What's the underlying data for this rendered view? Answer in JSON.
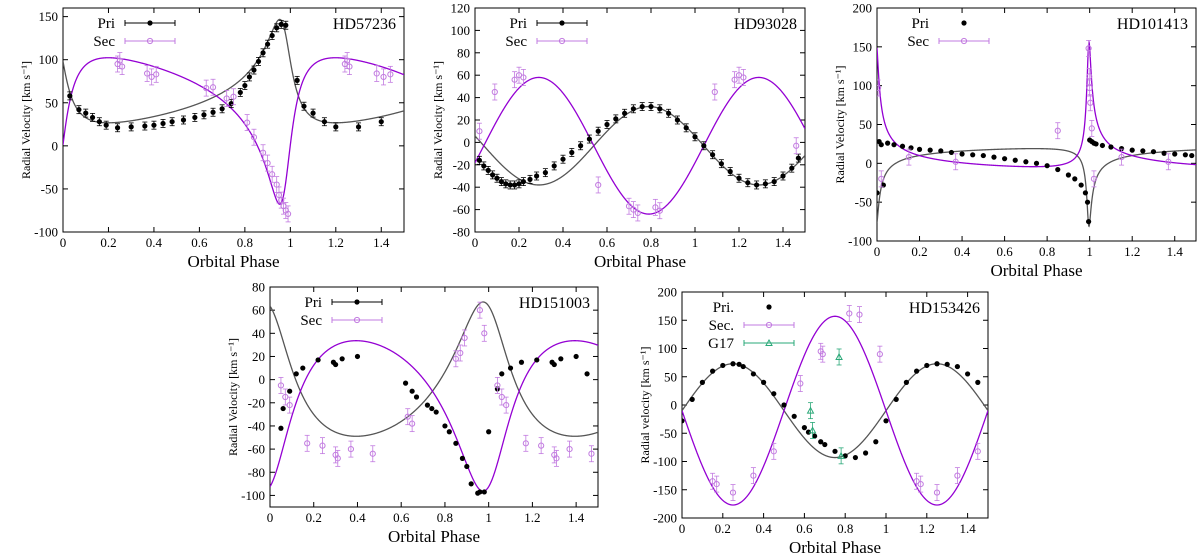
{
  "colors": {
    "pri": "#000000",
    "sec": "#9400d3",
    "sec_light": "#c27be0",
    "g17": "#2aa878",
    "axis": "#000000"
  },
  "chart_data": [
    {
      "type": "scatter",
      "title": "HD57236",
      "xlabel": "Orbital Phase",
      "ylabel": "Radial Velocity [km s⁻¹]",
      "xlim": [
        0,
        1.5
      ],
      "ylim": [
        -100,
        160
      ],
      "xticks": [
        0,
        0.2,
        0.4,
        0.6,
        0.8,
        1,
        1.2,
        1.4
      ],
      "xticklabels": [
        "0",
        "0.2",
        "0.4",
        "0.6",
        "0.8",
        "1",
        "1.2",
        "1.4"
      ],
      "yticks": [
        -100,
        -50,
        0,
        50,
        100,
        150
      ],
      "legend": [
        "Pri",
        "Sec"
      ],
      "orbit": {
        "gamma": 58,
        "K1": 60,
        "K2": 85,
        "e": 0.6,
        "omega_deg": 37,
        "T0": 0.975
      },
      "series": [
        {
          "name": "Pri",
          "style": "pri",
          "marker": "dot",
          "errorbars": true,
          "x": [
            0.03,
            0.07,
            0.1,
            0.13,
            0.16,
            0.19,
            0.24,
            0.3,
            0.36,
            0.4,
            0.44,
            0.48,
            0.53,
            0.58,
            0.62,
            0.66,
            0.7,
            0.74,
            0.78,
            0.8,
            0.82,
            0.84,
            0.86,
            0.88,
            0.9,
            0.92,
            0.94,
            0.96,
            0.98,
            1.03,
            1.06,
            1.1,
            1.15,
            1.2,
            1.3,
            1.4
          ],
          "y": [
            58,
            42,
            38,
            33,
            28,
            24,
            21,
            22,
            23,
            24,
            26,
            28,
            30,
            33,
            36,
            39,
            43,
            49,
            62,
            70,
            80,
            88,
            98,
            108,
            118,
            128,
            137,
            141,
            140,
            76,
            46,
            38,
            28,
            22,
            22,
            28
          ]
        },
        {
          "name": "Sec",
          "style": "sec",
          "marker": "circle",
          "errorbars": true,
          "x": [
            0.24,
            0.25,
            0.26,
            0.37,
            0.39,
            0.41,
            0.63,
            0.66,
            0.72,
            0.75,
            0.81,
            0.84,
            0.88,
            0.9,
            0.92,
            0.94,
            0.95,
            0.96,
            0.97,
            0.98,
            0.99,
            1.24,
            1.25,
            1.26,
            1.38,
            1.41,
            1.44
          ],
          "y": [
            95,
            99,
            92,
            84,
            80,
            83,
            67,
            68,
            55,
            57,
            27,
            10,
            -8,
            -20,
            -33,
            -45,
            -57,
            -63,
            -70,
            -75,
            -79,
            95,
            99,
            92,
            84,
            80,
            83
          ]
        }
      ]
    },
    {
      "type": "scatter",
      "title": "HD93028",
      "xlabel": "Orbital Phase",
      "ylabel": "Radial Velocity [km s⁻¹]",
      "xlim": [
        0,
        1.5
      ],
      "ylim": [
        -80,
        120
      ],
      "xticks": [
        0,
        0.2,
        0.4,
        0.6,
        0.8,
        1,
        1.2,
        1.4
      ],
      "xticklabels": [
        "0",
        "0.2",
        "0.4",
        "0.6",
        "0.8",
        "1",
        "1.2",
        "1.4"
      ],
      "yticks": [
        -80,
        -60,
        -40,
        -20,
        0,
        20,
        40,
        60,
        80,
        100,
        120
      ],
      "legend": [
        "Pri",
        "Sec"
      ],
      "orbit": {
        "gamma": -3,
        "K1": 35,
        "K2": 61,
        "e": 0,
        "omega_deg": 0,
        "phi_max1": 0.79
      },
      "series": [
        {
          "name": "Pri",
          "style": "pri",
          "marker": "dot",
          "errorbars": true,
          "x": [
            0.02,
            0.04,
            0.06,
            0.08,
            0.1,
            0.12,
            0.14,
            0.16,
            0.18,
            0.2,
            0.22,
            0.25,
            0.28,
            0.32,
            0.36,
            0.4,
            0.44,
            0.48,
            0.52,
            0.56,
            0.6,
            0.64,
            0.68,
            0.72,
            0.76,
            0.8,
            0.84,
            0.88,
            0.92,
            0.96,
            1.0,
            1.04,
            1.08,
            1.12,
            1.16,
            1.2,
            1.24,
            1.28,
            1.32,
            1.36,
            1.4,
            1.44,
            1.47
          ],
          "y": [
            -16,
            -21,
            -25,
            -29,
            -32,
            -35,
            -37,
            -38,
            -38,
            -37,
            -35,
            -33,
            -30,
            -27,
            -21,
            -15,
            -9,
            -3,
            3,
            10,
            16,
            21,
            26,
            30,
            32,
            32,
            30,
            26,
            20,
            13,
            5,
            -3,
            -11,
            -19,
            -26,
            -32,
            -36,
            -38,
            -37,
            -35,
            -30,
            -23,
            -14
          ]
        },
        {
          "name": "Sec",
          "style": "sec",
          "marker": "circle",
          "errorbars": true,
          "x": [
            0.02,
            0.09,
            0.18,
            0.2,
            0.22,
            0.56,
            0.7,
            0.72,
            0.74,
            0.82,
            0.84,
            1.09,
            1.18,
            1.2,
            1.22,
            1.46
          ],
          "y": [
            10,
            45,
            56,
            60,
            58,
            -38,
            -57,
            -60,
            -63,
            -58,
            -61,
            45,
            56,
            60,
            58,
            -3
          ]
        }
      ]
    },
    {
      "type": "scatter",
      "title": "HD101413",
      "xlabel": "Orbital Phase",
      "ylabel": "Radial Velocity [km s⁻¹]",
      "xlim": [
        0,
        1.5
      ],
      "ylim": [
        -100,
        200
      ],
      "xticks": [
        0,
        0.2,
        0.4,
        0.6,
        0.8,
        1,
        1.2,
        1.4
      ],
      "xticklabels": [
        "0",
        "0.2",
        "0.4",
        "0.6",
        "0.8",
        "1",
        "1.2",
        "1.4"
      ],
      "yticks": [
        -100,
        -50,
        0,
        50,
        100,
        150,
        200
      ],
      "legend": [
        "Pri",
        "Sec"
      ],
      "orbit": {
        "gamma": 10,
        "K1": 50,
        "K2": 80,
        "e": 0.85,
        "omega_deg": 165,
        "T0": 0.995
      },
      "series": [
        {
          "name": "Pri",
          "style": "pri",
          "marker": "dot",
          "errorbars": false,
          "x": [
            0.0,
            0.01,
            0.02,
            0.03,
            0.05,
            0.08,
            0.12,
            0.16,
            0.2,
            0.25,
            0.3,
            0.35,
            0.4,
            0.45,
            0.5,
            0.55,
            0.6,
            0.65,
            0.7,
            0.75,
            0.8,
            0.85,
            0.9,
            0.93,
            0.96,
            0.98,
            0.99,
            0.995,
            1.0,
            1.01,
            1.02,
            1.03,
            1.06,
            1.1,
            1.15,
            1.2,
            1.25,
            1.3,
            1.35,
            1.4,
            1.45,
            1.48
          ],
          "y": [
            -38,
            28,
            24,
            -28,
            26,
            24,
            22,
            20,
            18,
            17,
            16,
            14,
            12,
            11,
            10,
            8,
            6,
            4,
            2,
            0,
            -3,
            -8,
            -15,
            -20,
            -28,
            -38,
            -50,
            -75,
            30,
            28,
            26,
            25,
            23,
            21,
            19,
            17,
            16,
            15,
            13,
            12,
            11,
            10
          ]
        },
        {
          "name": "Sec",
          "style": "sec",
          "marker": "circle",
          "errorbars": true,
          "x": [
            0.005,
            0.02,
            0.15,
            0.37,
            0.85,
            0.995,
            0.998,
            1.0,
            1.003,
            1.01,
            1.02,
            1.15,
            1.37
          ],
          "y": [
            97,
            -20,
            8,
            2,
            42,
            148,
            112,
            97,
            78,
            45,
            -20,
            8,
            2
          ]
        }
      ]
    },
    {
      "type": "scatter",
      "title": "HD151003",
      "xlabel": "Orbital Phase",
      "ylabel": "Radial Velocity [km s⁻¹]",
      "xlim": [
        0,
        1.5
      ],
      "ylim": [
        -110,
        80
      ],
      "xticks": [
        0,
        0.2,
        0.4,
        0.6,
        0.8,
        1,
        1.2,
        1.4
      ],
      "xticklabels": [
        "0",
        "0.2",
        "0.4",
        "0.6",
        "0.8",
        "1",
        "1.2",
        "1.4"
      ],
      "yticks": [
        -100,
        -80,
        -60,
        -40,
        -20,
        0,
        20,
        40,
        60,
        80
      ],
      "legend": [
        "Pri",
        "Sec"
      ],
      "orbit": {
        "gamma": -10,
        "K1": 58,
        "K2": 65,
        "e": 0.35,
        "omega_deg": 20,
        "T0": 0.0
      },
      "series": [
        {
          "name": "Pri",
          "style": "pri",
          "marker": "dot",
          "errorbars": false,
          "x": [
            0.05,
            0.06,
            0.09,
            0.12,
            0.15,
            0.22,
            0.29,
            0.3,
            0.33,
            0.4,
            0.62,
            0.65,
            0.67,
            0.72,
            0.74,
            0.76,
            0.8,
            0.82,
            0.85,
            0.88,
            0.9,
            0.92,
            0.95,
            0.96,
            0.98,
            1.0,
            1.04,
            1.06,
            1.1,
            1.15,
            1.22,
            1.29,
            1.3,
            1.33,
            1.4,
            1.45
          ],
          "y": [
            -42,
            -25,
            -10,
            5,
            10,
            17,
            15,
            13,
            18,
            20,
            -3,
            -10,
            -15,
            -22,
            -25,
            -28,
            -40,
            -45,
            -55,
            -68,
            -75,
            -90,
            -98,
            -97,
            -97,
            -45,
            -8,
            5,
            10,
            15,
            17,
            15,
            13,
            18,
            20,
            5
          ]
        },
        {
          "name": "Sec",
          "style": "sec",
          "marker": "circle",
          "errorbars": true,
          "x": [
            0.05,
            0.07,
            0.09,
            0.17,
            0.24,
            0.3,
            0.31,
            0.37,
            0.47,
            0.63,
            0.65,
            0.85,
            0.87,
            0.89,
            0.96,
            0.98,
            1.04,
            1.06,
            1.08,
            1.17,
            1.24,
            1.3,
            1.31,
            1.37,
            1.47
          ],
          "y": [
            -5,
            -15,
            -22,
            -55,
            -57,
            -65,
            -68,
            -60,
            -64,
            -32,
            -38,
            18,
            23,
            36,
            60,
            40,
            -5,
            -15,
            -22,
            -55,
            -57,
            -65,
            -68,
            -60,
            -64
          ]
        }
      ]
    },
    {
      "type": "scatter",
      "title": "HD153426",
      "xlabel": "Orbital Phase",
      "ylabel": "Radial velocity [km s⁻¹]",
      "xlim": [
        0,
        1.5
      ],
      "ylim": [
        -200,
        200
      ],
      "xticks": [
        0,
        0.2,
        0.4,
        0.6,
        0.8,
        1,
        1.2,
        1.4
      ],
      "xticklabels": [
        "0",
        "0.2",
        "0.4",
        "0.6",
        "0.8",
        "1",
        "1.2",
        "1.4"
      ],
      "yticks": [
        -200,
        -150,
        -100,
        -50,
        0,
        50,
        100,
        150,
        200
      ],
      "legend": [
        "Pri.",
        "Sec.",
        "G17"
      ],
      "orbit": {
        "gamma": -10,
        "K1": 83,
        "K2": 167,
        "e": 0,
        "omega_deg": 0,
        "phi_max1": 0.25
      },
      "series": [
        {
          "name": "Pri.",
          "style": "pri",
          "marker": "dot",
          "errorbars": false,
          "x": [
            0.0,
            0.05,
            0.1,
            0.15,
            0.2,
            0.25,
            0.28,
            0.3,
            0.35,
            0.4,
            0.45,
            0.5,
            0.55,
            0.6,
            0.62,
            0.65,
            0.68,
            0.7,
            0.75,
            0.8,
            0.85,
            0.9,
            0.95,
            1.0,
            1.05,
            1.1,
            1.15,
            1.2,
            1.25,
            1.3,
            1.35,
            1.4,
            1.45
          ],
          "y": [
            -28,
            10,
            40,
            60,
            70,
            73,
            72,
            68,
            55,
            40,
            20,
            0,
            -20,
            -40,
            -48,
            -55,
            -65,
            -70,
            -82,
            -90,
            -93,
            -85,
            -65,
            -28,
            10,
            40,
            60,
            70,
            73,
            72,
            68,
            55,
            40
          ]
        },
        {
          "name": "Sec.",
          "style": "sec",
          "marker": "circle",
          "errorbars": true,
          "x": [
            0.15,
            0.17,
            0.25,
            0.35,
            0.45,
            0.58,
            0.68,
            0.69,
            0.82,
            0.87,
            0.97,
            1.15,
            1.17,
            1.25,
            1.35,
            1.45
          ],
          "y": [
            -135,
            -140,
            -155,
            -125,
            -82,
            38,
            95,
            90,
            162,
            160,
            90,
            -135,
            -140,
            -155,
            -125,
            -82
          ]
        },
        {
          "name": "G17",
          "style": "g17",
          "marker": "triangle",
          "errorbars": true,
          "x": [
            0.63,
            0.64,
            0.77,
            0.78
          ],
          "y": [
            -10,
            -45,
            85,
            -90
          ]
        }
      ]
    }
  ]
}
